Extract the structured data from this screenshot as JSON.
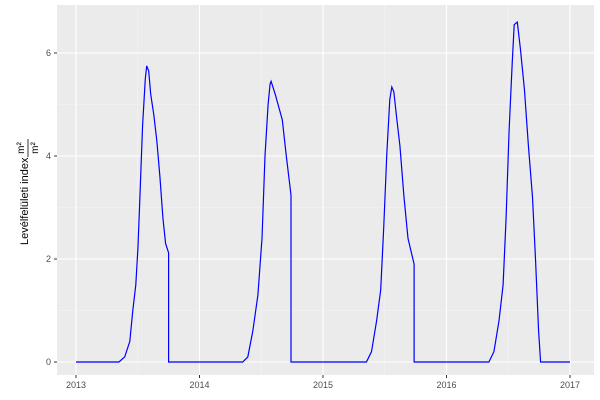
{
  "chart_data": {
    "type": "line",
    "title": "",
    "xlabel": "",
    "ylabel": "Levélfelületi index",
    "ylabel_unit_num": "m²",
    "ylabel_unit_den": "m²",
    "x_ticks": [
      "2013",
      "2014",
      "2015",
      "2016",
      "2017"
    ],
    "y_ticks": [
      "0",
      "2",
      "4",
      "6"
    ],
    "xlim": [
      "2012-11-06",
      "2017-02-06"
    ],
    "ylim": [
      -0.25,
      6.9
    ],
    "grid": true,
    "series": [
      {
        "color": "#0000ff",
        "points": [
          [
            "2013-01-01",
            0
          ],
          [
            "2013-05-08",
            0
          ],
          [
            "2013-05-25",
            0.1
          ],
          [
            "2013-06-09",
            0.4
          ],
          [
            "2013-06-18",
            1.0
          ],
          [
            "2013-06-27",
            1.5
          ],
          [
            "2013-07-03",
            2.2
          ],
          [
            "2013-07-09",
            3.2
          ],
          [
            "2013-07-17",
            4.6
          ],
          [
            "2013-07-25",
            5.5
          ],
          [
            "2013-07-29",
            5.75
          ],
          [
            "2013-08-04",
            5.65
          ],
          [
            "2013-08-10",
            5.2
          ],
          [
            "2013-08-19",
            4.8
          ],
          [
            "2013-08-28",
            4.3
          ],
          [
            "2013-09-06",
            3.6
          ],
          [
            "2013-09-15",
            2.8
          ],
          [
            "2013-09-23",
            2.3
          ],
          [
            "2013-10-02",
            2.12
          ],
          [
            "2013-10-02",
            0
          ],
          [
            "2014-05-09",
            0
          ],
          [
            "2014-05-24",
            0.1
          ],
          [
            "2014-06-08",
            0.6
          ],
          [
            "2014-06-23",
            1.3
          ],
          [
            "2014-07-05",
            2.4
          ],
          [
            "2014-07-14",
            4.0
          ],
          [
            "2014-07-23",
            5.0
          ],
          [
            "2014-07-29",
            5.4
          ],
          [
            "2014-08-01",
            5.45
          ],
          [
            "2014-08-13",
            5.2
          ],
          [
            "2014-09-03",
            4.7
          ],
          [
            "2014-09-15",
            4.0
          ],
          [
            "2014-09-29",
            3.24
          ],
          [
            "2014-09-29",
            0
          ],
          [
            "2015-05-10",
            0
          ],
          [
            "2015-05-25",
            0.2
          ],
          [
            "2015-06-09",
            0.8
          ],
          [
            "2015-06-21",
            1.4
          ],
          [
            "2015-06-30",
            2.6
          ],
          [
            "2015-07-09",
            4.0
          ],
          [
            "2015-07-18",
            5.1
          ],
          [
            "2015-07-24",
            5.34
          ],
          [
            "2015-07-30",
            5.25
          ],
          [
            "2015-08-08",
            4.7
          ],
          [
            "2015-08-17",
            4.2
          ],
          [
            "2015-08-29",
            3.2
          ],
          [
            "2015-09-10",
            2.4
          ],
          [
            "2015-09-28",
            1.9
          ],
          [
            "2015-09-28",
            0
          ],
          [
            "2016-05-06",
            0
          ],
          [
            "2016-05-21",
            0.2
          ],
          [
            "2016-06-05",
            0.8
          ],
          [
            "2016-06-17",
            1.5
          ],
          [
            "2016-06-26",
            2.8
          ],
          [
            "2016-07-05",
            4.5
          ],
          [
            "2016-07-14",
            5.8
          ],
          [
            "2016-07-20",
            6.55
          ],
          [
            "2016-07-29",
            6.6
          ],
          [
            "2016-08-07",
            6.1
          ],
          [
            "2016-08-19",
            5.3
          ],
          [
            "2016-08-31",
            4.2
          ],
          [
            "2016-09-12",
            3.2
          ],
          [
            "2016-09-21",
            2.0
          ],
          [
            "2016-09-30",
            0.6
          ],
          [
            "2016-10-06",
            0
          ],
          [
            "2017-01-01",
            0
          ]
        ]
      }
    ]
  }
}
